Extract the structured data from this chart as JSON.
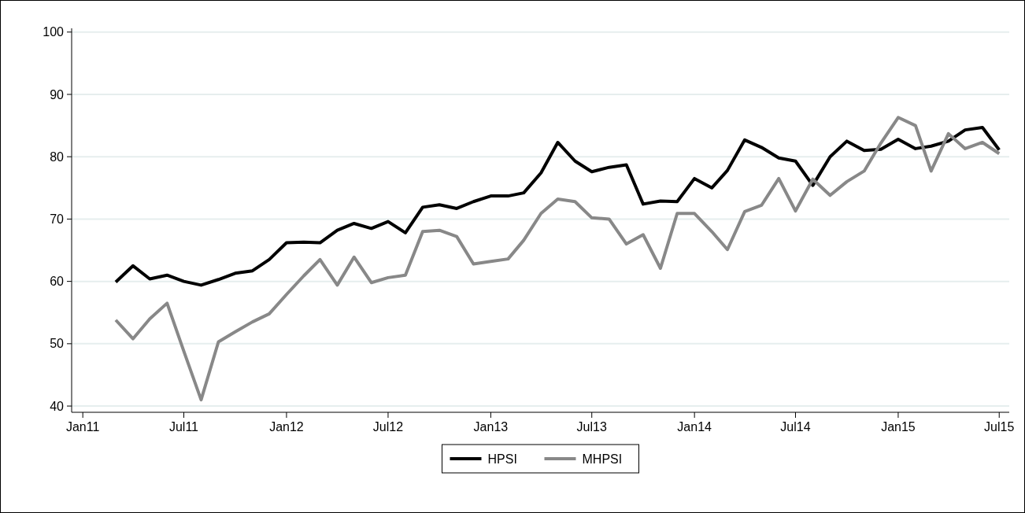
{
  "chart_data": {
    "type": "line",
    "x": [
      "2011-03",
      "2011-04",
      "2011-05",
      "2011-06",
      "2011-07",
      "2011-08",
      "2011-09",
      "2011-10",
      "2011-11",
      "2011-12",
      "2012-01",
      "2012-02",
      "2012-03",
      "2012-04",
      "2012-05",
      "2012-06",
      "2012-07",
      "2012-08",
      "2012-09",
      "2012-10",
      "2012-11",
      "2012-12",
      "2013-01",
      "2013-02",
      "2013-03",
      "2013-04",
      "2013-05",
      "2013-06",
      "2013-07",
      "2013-08",
      "2013-09",
      "2013-10",
      "2013-11",
      "2013-12",
      "2014-01",
      "2014-02",
      "2014-03",
      "2014-04",
      "2014-05",
      "2014-06",
      "2014-07",
      "2014-08",
      "2014-09",
      "2014-10",
      "2014-11",
      "2014-12",
      "2015-01",
      "2015-02",
      "2015-03",
      "2015-04",
      "2015-05",
      "2015-06",
      "2015-07"
    ],
    "series": [
      {
        "name": "HPSI",
        "color": "#000000",
        "values": [
          59.9,
          62.5,
          60.4,
          61.0,
          60.0,
          59.4,
          60.3,
          61.3,
          61.7,
          63.5,
          66.2,
          66.3,
          66.2,
          68.2,
          69.3,
          68.5,
          69.6,
          67.8,
          71.9,
          72.3,
          71.7,
          72.8,
          73.7,
          73.7,
          74.2,
          77.4,
          82.3,
          79.3,
          77.6,
          78.3,
          78.7,
          72.4,
          72.9,
          72.8,
          76.5,
          75.0,
          77.8,
          82.7,
          81.5,
          79.8,
          79.3,
          75.4,
          80.0,
          82.5,
          81.0,
          81.2,
          82.8,
          81.3,
          81.7,
          82.5,
          84.3,
          84.7,
          81.1
        ]
      },
      {
        "name": "MHPSI",
        "color": "#888888",
        "values": [
          53.8,
          50.8,
          54.0,
          56.5,
          48.8,
          41.0,
          50.3,
          51.9,
          53.5,
          54.8,
          57.9,
          60.9,
          63.5,
          59.4,
          63.9,
          59.8,
          60.6,
          61.0,
          68.0,
          68.2,
          67.2,
          62.8,
          63.2,
          63.6,
          66.6,
          70.9,
          73.2,
          72.8,
          70.2,
          70.0,
          66.0,
          67.5,
          62.1,
          70.9,
          70.9,
          68.0,
          65.1,
          71.2,
          72.2,
          76.5,
          71.3,
          76.4,
          73.8,
          76.0,
          77.7,
          82.2,
          86.3,
          85.0,
          77.7,
          83.7,
          81.3,
          82.3,
          80.5
        ]
      }
    ],
    "xlim": [
      "2010-12-12",
      "2015-07-19"
    ],
    "xticks": [
      {
        "value": "2011-01",
        "label": "Jan11"
      },
      {
        "value": "2011-07",
        "label": "Jul11"
      },
      {
        "value": "2012-01",
        "label": "Jan12"
      },
      {
        "value": "2012-07",
        "label": "Jul12"
      },
      {
        "value": "2013-01",
        "label": "Jan13"
      },
      {
        "value": "2013-07",
        "label": "Jul13"
      },
      {
        "value": "2014-01",
        "label": "Jan14"
      },
      {
        "value": "2014-07",
        "label": "Jul14"
      },
      {
        "value": "2015-01",
        "label": "Jan15"
      },
      {
        "value": "2015-07",
        "label": "Jul15"
      }
    ],
    "ylim": [
      39,
      100.6
    ],
    "yticks": [
      40,
      50,
      60,
      70,
      80,
      90,
      100
    ],
    "grid": "y",
    "legend": "bottom",
    "line_style": "solid",
    "marker": "none"
  }
}
